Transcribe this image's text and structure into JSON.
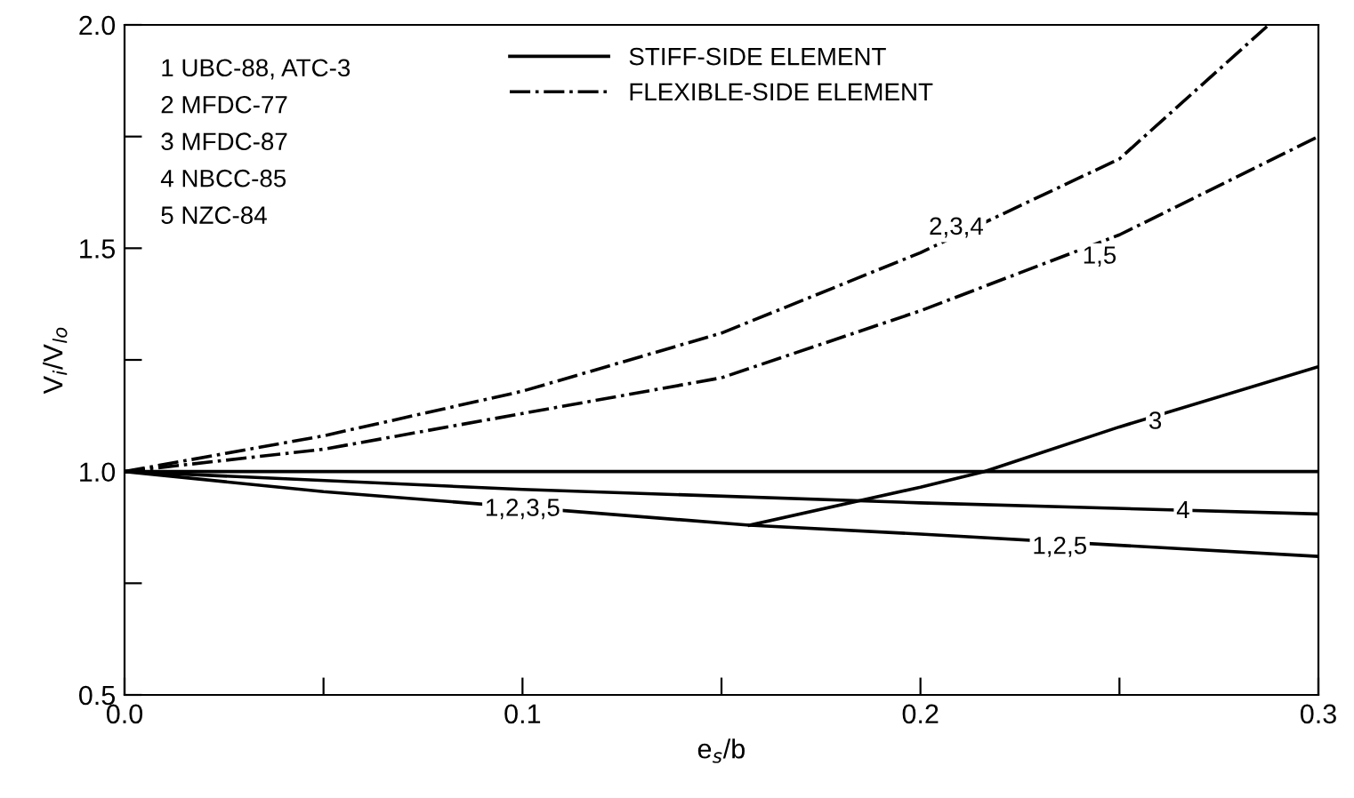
{
  "chart_data": {
    "type": "line",
    "xlabel": "e$_{s}$/b",
    "ylabel": "V$_{i}$/V$_{lo}$",
    "xlim": [
      0,
      0.3
    ],
    "ylim": [
      0.5,
      2.0
    ],
    "xticks": [
      {
        "value": 0,
        "label": "0.0"
      },
      {
        "value": 0.05,
        "label": null
      },
      {
        "value": 0.1,
        "label": "0.1"
      },
      {
        "value": 0.15,
        "label": null
      },
      {
        "value": 0.2,
        "label": "0.2"
      },
      {
        "value": 0.25,
        "label": null
      },
      {
        "value": 0.3,
        "label": "0.3"
      }
    ],
    "yticks": [
      {
        "value": 0.5,
        "label": "0.5"
      },
      {
        "value": 0.75,
        "label": null
      },
      {
        "value": 1.0,
        "label": "1.0"
      },
      {
        "value": 1.25,
        "label": null
      },
      {
        "value": 1.5,
        "label": "1.5"
      },
      {
        "value": 1.75,
        "label": null
      },
      {
        "value": 2.0,
        "label": "2.0"
      }
    ],
    "grid": false,
    "legend": "top",
    "marker": "none",
    "series": [
      {
        "name": "STIFF-SIDE ELEMENT",
        "color": "#000000",
        "line_style": "solid",
        "x": [
          0,
          0.1,
          0.2,
          0.3
        ],
        "values": [
          1.0,
          1.0,
          1.0,
          1.0
        ]
      },
      {
        "name": "FLEXIBLE-SIDE ELEMENT",
        "color": "#000000",
        "line_style": "dashdot",
        "x": [
          0,
          0.05,
          0.1,
          0.15,
          0.2,
          0.25,
          0.2875
        ],
        "values": [
          1.0,
          1.08,
          1.18,
          1.31,
          1.49,
          1.7,
          2.0
        ]
      },
      {
        "color": "#000000",
        "line_style": "dashdot",
        "x": [
          0,
          0.05,
          0.1,
          0.15,
          0.2,
          0.25,
          0.3
        ],
        "values": [
          1.0,
          1.05,
          1.13,
          1.21,
          1.36,
          1.53,
          1.75
        ]
      },
      {
        "color": "#000000",
        "line_style": "solid",
        "x": [
          0,
          0.1,
          0.2,
          0.3
        ],
        "values": [
          1.0,
          0.96,
          0.93,
          0.905
        ]
      },
      {
        "color": "#000000",
        "line_style": "solid",
        "x": [
          0,
          0.05,
          0.157,
          0.2,
          0.25,
          0.3
        ],
        "values": [
          1.0,
          0.955,
          0.88,
          0.86,
          0.835,
          0.81
        ]
      },
      {
        "color": "#000000",
        "line_style": "solid",
        "x": [
          0.157,
          0.2,
          0.216,
          0.25,
          0.3
        ],
        "values": [
          0.88,
          0.965,
          1.0,
          1.1,
          1.235
        ]
      }
    ],
    "annotations": [
      "1 UBC-88, ATC-3",
      "2 MFDC-77",
      "3 MFDC-87",
      "4 NBCC-85",
      "5 NZC-84",
      {
        "text": "2,3,4",
        "x": 0.209,
        "y": 1.545
      },
      {
        "text": "1,5",
        "x": 0.245,
        "y": 1.48
      },
      {
        "text": "3",
        "x": 0.259,
        "y": 1.11
      },
      {
        "text": "4",
        "x": 0.266,
        "y": 0.91
      },
      {
        "text": "1,2,5",
        "x": 0.235,
        "y": 0.83
      },
      {
        "text": "1,2,3,5",
        "x": 0.1,
        "y": 0.915
      }
    ]
  }
}
